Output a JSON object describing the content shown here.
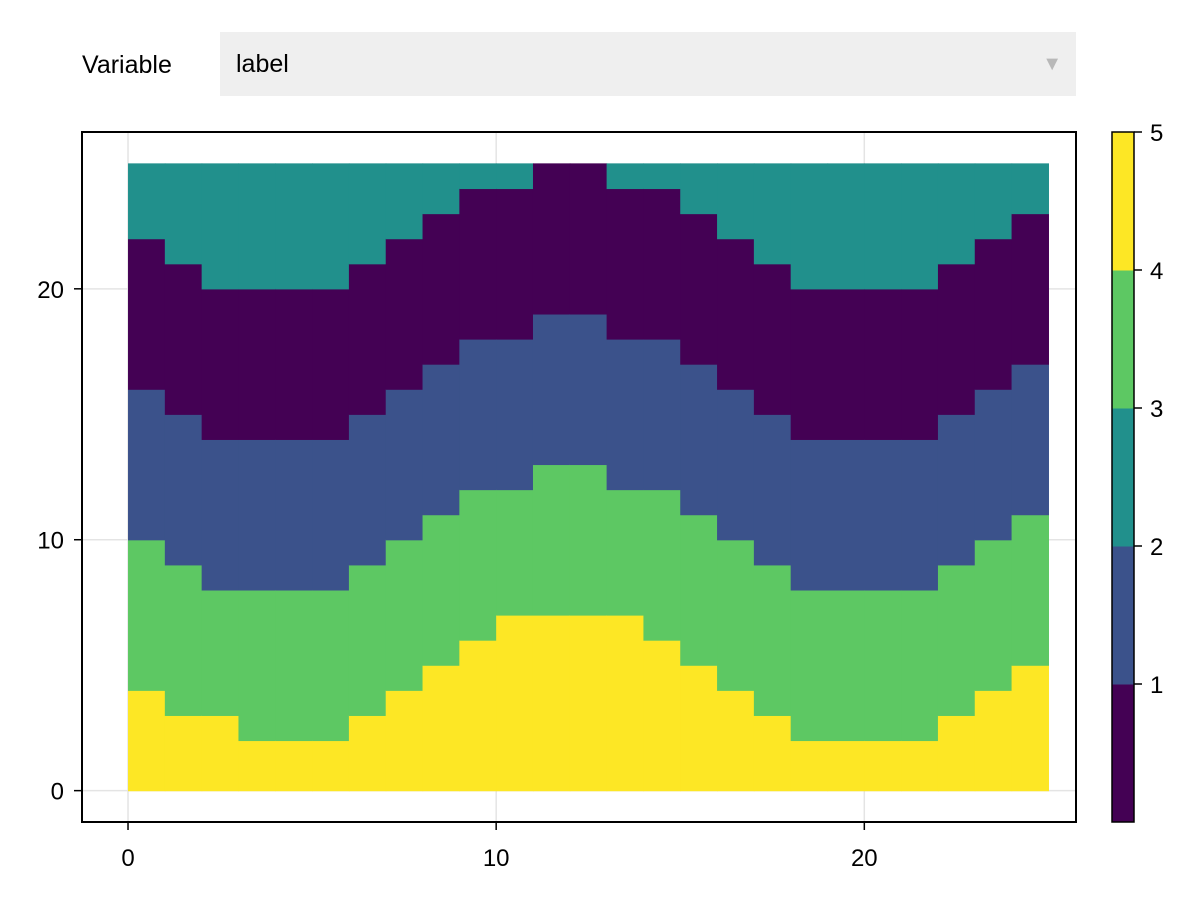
{
  "controls": {
    "variable_label": "Variable",
    "variable_value": "label",
    "arrow_icon": "triangle-down-icon"
  },
  "chart_data": {
    "type": "heatmap",
    "title": "",
    "xlabel": "",
    "ylabel": "",
    "xlim": [
      -1.25,
      25.75
    ],
    "ylim": [
      -1.25,
      26.25
    ],
    "xticks": [
      0,
      10,
      20
    ],
    "yticks": [
      0,
      10,
      20
    ],
    "grid": true,
    "x": [
      0,
      25
    ],
    "y": [
      0,
      25
    ],
    "colorbar": {
      "ticks": [
        1,
        2,
        3,
        4,
        5
      ],
      "categories": [
        {
          "value": 1,
          "color": "#440154"
        },
        {
          "value": 2,
          "color": "#3b528b"
        },
        {
          "value": 3,
          "color": "#21908c"
        },
        {
          "value": 4,
          "color": "#5dc863"
        },
        {
          "value": 5,
          "color": "#fde725"
        }
      ]
    },
    "boundaries": {
      "yellow_top": [
        4,
        3,
        3,
        2,
        2,
        2,
        3,
        4,
        5,
        6,
        7,
        7,
        7,
        7,
        6,
        5,
        4,
        3,
        2,
        2,
        2,
        2,
        3,
        4,
        5
      ],
      "green_top": [
        10,
        9,
        8,
        8,
        8,
        8,
        9,
        10,
        11,
        12,
        12,
        13,
        13,
        12,
        12,
        11,
        10,
        9,
        8,
        8,
        8,
        8,
        9,
        10,
        11
      ],
      "blue_top": [
        16,
        15,
        14,
        14,
        14,
        14,
        15,
        16,
        17,
        18,
        18,
        19,
        19,
        18,
        18,
        17,
        16,
        15,
        14,
        14,
        14,
        14,
        15,
        16,
        17
      ],
      "purple_top": [
        22,
        21,
        20,
        20,
        20,
        20,
        21,
        22,
        23,
        24,
        24,
        25,
        25,
        24,
        24,
        23,
        22,
        21,
        20,
        20,
        20,
        20,
        21,
        22,
        23
      ]
    },
    "band_order": [
      {
        "name": "yellow",
        "value": 5
      },
      {
        "name": "green",
        "value": 4
      },
      {
        "name": "blue",
        "value": 2
      },
      {
        "name": "purple",
        "value": 1
      },
      {
        "name": "teal",
        "value": 3
      }
    ]
  }
}
